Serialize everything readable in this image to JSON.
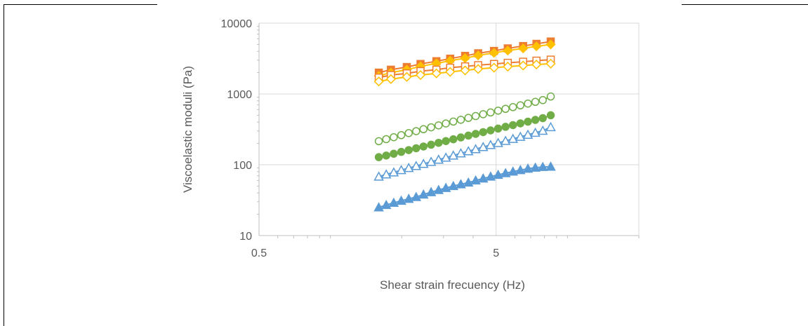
{
  "chart_data": {
    "type": "scatter",
    "title": "",
    "xlabel": "Shear strain frecuency (Hz)",
    "ylabel": "Viscoelastic moduli (Pa)",
    "xscale": "log",
    "yscale": "log",
    "xlim": [
      0.5,
      20
    ],
    "ylim": [
      10,
      10000
    ],
    "xticks": [
      "0.5",
      "5"
    ],
    "yticks": [
      "10",
      "100",
      "1000",
      "10000"
    ],
    "grid": true,
    "legend": "none",
    "series": [
      {
        "color": "#ed7d31",
        "marker": "square",
        "filled": true,
        "x": [
          1.6,
          1.8,
          2.1,
          2.4,
          2.8,
          3.2,
          3.7,
          4.2,
          4.9,
          5.6,
          6.5,
          7.4,
          8.5
        ],
        "y": [
          2000,
          2200,
          2400,
          2650,
          2900,
          3150,
          3450,
          3750,
          4050,
          4400,
          4750,
          5100,
          5500
        ]
      },
      {
        "color": "#ffc000",
        "marker": "diamond",
        "filled": true,
        "x": [
          1.6,
          1.8,
          2.1,
          2.4,
          2.8,
          3.2,
          3.7,
          4.2,
          4.9,
          5.6,
          6.5,
          7.4,
          8.5
        ],
        "y": [
          1800,
          2000,
          2200,
          2450,
          2700,
          2950,
          3200,
          3500,
          3800,
          4100,
          4400,
          4700,
          5000
        ]
      },
      {
        "color": "#ed7d31",
        "marker": "square",
        "filled": false,
        "x": [
          1.6,
          1.8,
          2.1,
          2.4,
          2.8,
          3.2,
          3.7,
          4.2,
          4.9,
          5.6,
          6.5,
          7.4,
          8.5
        ],
        "y": [
          1700,
          1850,
          1950,
          2100,
          2200,
          2350,
          2450,
          2550,
          2650,
          2750,
          2850,
          2950,
          3050
        ]
      },
      {
        "color": "#ffc000",
        "marker": "diamond",
        "filled": false,
        "x": [
          1.6,
          1.8,
          2.1,
          2.4,
          2.8,
          3.2,
          3.7,
          4.2,
          4.9,
          5.6,
          6.5,
          7.4,
          8.5
        ],
        "y": [
          1500,
          1620,
          1740,
          1850,
          1950,
          2050,
          2150,
          2250,
          2350,
          2430,
          2520,
          2600,
          2680
        ]
      },
      {
        "color": "#70ad47",
        "marker": "circle",
        "filled": false,
        "x": [
          1.6,
          1.72,
          1.85,
          1.99,
          2.14,
          2.3,
          2.47,
          2.66,
          2.86,
          3.07,
          3.3,
          3.55,
          3.82,
          4.1,
          4.41,
          4.74,
          5.1,
          5.48,
          5.89,
          6.33,
          6.81,
          7.32,
          7.87,
          8.5
        ],
        "y": [
          215,
          230,
          245,
          262,
          280,
          298,
          318,
          338,
          360,
          383,
          407,
          432,
          459,
          487,
          517,
          548,
          581,
          616,
          652,
          690,
          731,
          773,
          818,
          920
        ]
      },
      {
        "color": "#70ad47",
        "marker": "circle",
        "filled": true,
        "x": [
          1.6,
          1.72,
          1.85,
          1.99,
          2.14,
          2.3,
          2.47,
          2.66,
          2.86,
          3.07,
          3.3,
          3.55,
          3.82,
          4.1,
          4.41,
          4.74,
          5.1,
          5.48,
          5.89,
          6.33,
          6.81,
          7.32,
          7.87,
          8.5
        ],
        "y": [
          128,
          135,
          143,
          152,
          161,
          171,
          181,
          192,
          204,
          216,
          229,
          243,
          258,
          273,
          289,
          306,
          324,
          343,
          363,
          384,
          406,
          430,
          455,
          500
        ]
      },
      {
        "color": "#5b9bd5",
        "marker": "triangle",
        "filled": false,
        "x": [
          1.6,
          1.72,
          1.85,
          1.99,
          2.14,
          2.3,
          2.47,
          2.66,
          2.86,
          3.07,
          3.3,
          3.55,
          3.82,
          4.1,
          4.41,
          4.74,
          5.1,
          5.48,
          5.89,
          6.33,
          6.81,
          7.32,
          7.87,
          8.5
        ],
        "y": [
          68,
          73,
          78,
          84,
          90,
          96,
          103,
          110,
          118,
          126,
          135,
          145,
          155,
          166,
          178,
          190,
          203,
          217,
          232,
          248,
          265,
          283,
          302,
          340
        ]
      },
      {
        "color": "#5b9bd5",
        "marker": "triangle",
        "filled": true,
        "x": [
          1.6,
          1.72,
          1.85,
          1.99,
          2.14,
          2.3,
          2.47,
          2.66,
          2.86,
          3.07,
          3.3,
          3.55,
          3.82,
          4.1,
          4.41,
          4.74,
          5.1,
          5.48,
          5.89,
          6.33,
          6.81,
          7.32,
          7.87,
          8.5
        ],
        "y": [
          25,
          27,
          29,
          31,
          33,
          35,
          38,
          41,
          44,
          47,
          50,
          53,
          56,
          60,
          64,
          68,
          72,
          76,
          80,
          84,
          88,
          91,
          93,
          94
        ]
      }
    ]
  }
}
